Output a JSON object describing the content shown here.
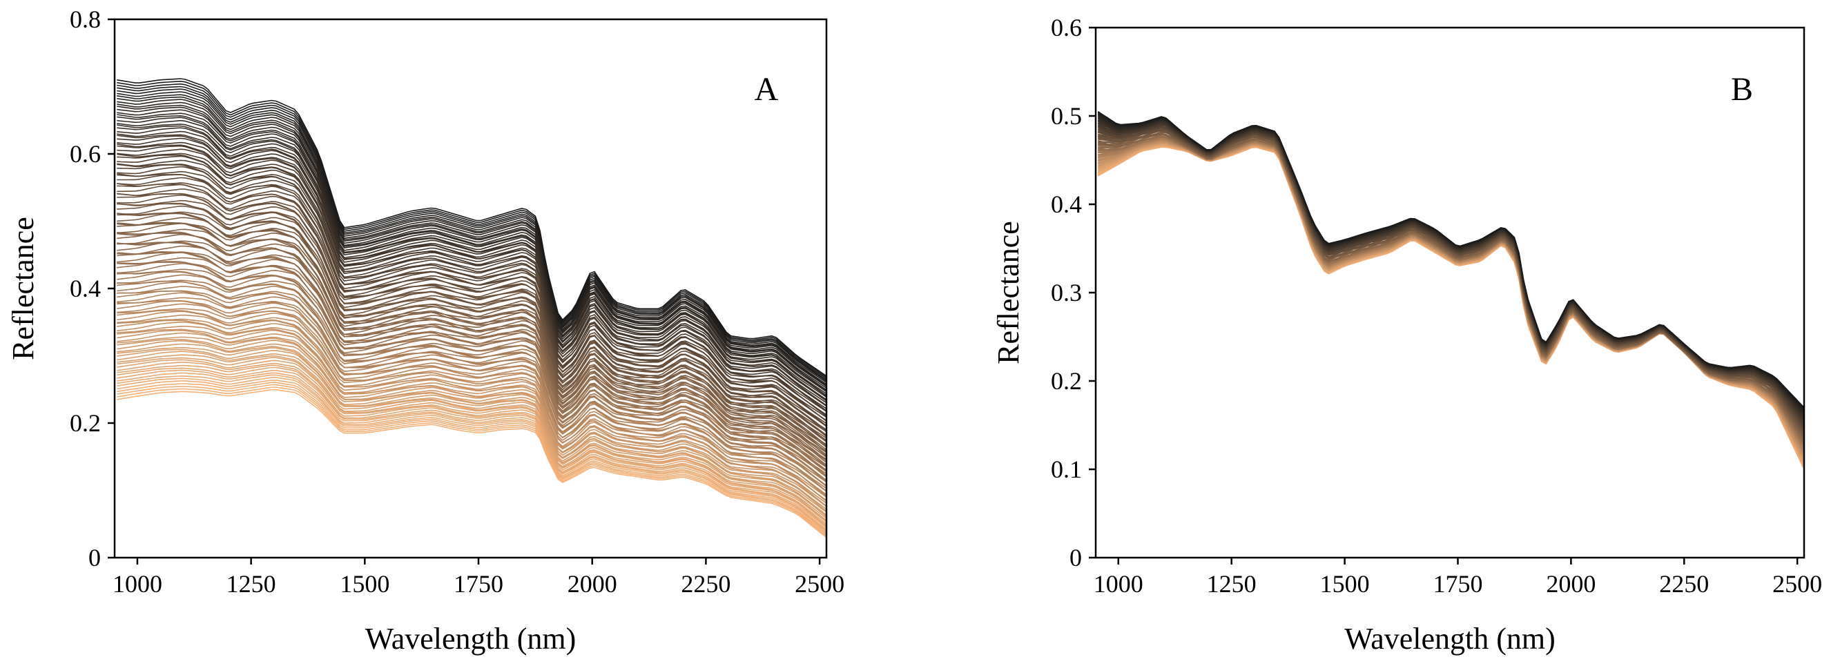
{
  "colors": {
    "dark": "#1a1a1a",
    "light": "#f5b27a"
  },
  "chart_data": [
    {
      "type": "line",
      "panel": "A",
      "xlabel": "Wavelength (nm)",
      "ylabel": "Reflectance",
      "xlim": [
        950,
        2515
      ],
      "ylim": [
        0,
        0.8
      ],
      "xticks": [
        1000,
        1250,
        1500,
        1750,
        2000,
        2250,
        2500
      ],
      "yticks": [
        0,
        0.2,
        0.4,
        0.6,
        0.8
      ],
      "ytick_labels": [
        "0",
        "0.2",
        "0.4",
        "0.6",
        "0.8"
      ],
      "n_spectra": 120,
      "series": [
        {
          "name": "spectrum max",
          "x": [
            955,
            1000,
            1050,
            1100,
            1150,
            1200,
            1250,
            1300,
            1350,
            1400,
            1450,
            1500,
            1550,
            1600,
            1650,
            1700,
            1750,
            1800,
            1850,
            1880,
            1900,
            1930,
            1960,
            2000,
            2050,
            2100,
            2150,
            2200,
            2250,
            2300,
            2350,
            2400,
            2450,
            2515
          ],
          "y": [
            0.71,
            0.705,
            0.71,
            0.712,
            0.7,
            0.66,
            0.675,
            0.68,
            0.665,
            0.6,
            0.49,
            0.495,
            0.505,
            0.515,
            0.52,
            0.51,
            0.5,
            0.51,
            0.52,
            0.505,
            0.43,
            0.35,
            0.37,
            0.43,
            0.38,
            0.37,
            0.37,
            0.4,
            0.38,
            0.33,
            0.325,
            0.33,
            0.3,
            0.27
          ]
        },
        {
          "name": "spectrum min",
          "x": [
            955,
            1000,
            1050,
            1100,
            1150,
            1200,
            1250,
            1300,
            1350,
            1400,
            1450,
            1500,
            1550,
            1600,
            1650,
            1700,
            1750,
            1800,
            1850,
            1880,
            1900,
            1930,
            1960,
            2000,
            2050,
            2100,
            2150,
            2200,
            2250,
            2300,
            2350,
            2400,
            2450,
            2515
          ],
          "y": [
            0.235,
            0.24,
            0.245,
            0.247,
            0.245,
            0.24,
            0.245,
            0.25,
            0.245,
            0.22,
            0.185,
            0.185,
            0.19,
            0.195,
            0.198,
            0.19,
            0.185,
            0.19,
            0.192,
            0.185,
            0.15,
            0.11,
            0.12,
            0.135,
            0.125,
            0.12,
            0.115,
            0.12,
            0.11,
            0.09,
            0.085,
            0.08,
            0.065,
            0.03
          ]
        }
      ]
    },
    {
      "type": "line",
      "panel": "B",
      "xlabel": "Wavelength (nm)",
      "ylabel": "Reflectance",
      "xlim": [
        950,
        2515
      ],
      "ylim": [
        0,
        0.6
      ],
      "xticks": [
        1000,
        1250,
        1500,
        1750,
        2000,
        2250,
        2500
      ],
      "yticks": [
        0,
        0.1,
        0.2,
        0.3,
        0.4,
        0.5,
        0.6
      ],
      "ytick_labels": [
        "0",
        "0.1",
        "0.2",
        "0.3",
        "0.4",
        "0.5",
        "0.6"
      ],
      "n_spectra": 120,
      "series": [
        {
          "name": "spectrum max",
          "x": [
            955,
            1000,
            1050,
            1100,
            1150,
            1200,
            1250,
            1300,
            1350,
            1400,
            1430,
            1460,
            1500,
            1550,
            1600,
            1650,
            1700,
            1750,
            1800,
            1850,
            1880,
            1900,
            1940,
            1970,
            2000,
            2050,
            2100,
            2150,
            2200,
            2250,
            2300,
            2350,
            2400,
            2450,
            2515
          ],
          "y": [
            0.505,
            0.49,
            0.492,
            0.5,
            0.478,
            0.46,
            0.48,
            0.49,
            0.482,
            0.42,
            0.38,
            0.355,
            0.36,
            0.368,
            0.375,
            0.385,
            0.372,
            0.352,
            0.36,
            0.375,
            0.36,
            0.3,
            0.24,
            0.265,
            0.295,
            0.265,
            0.248,
            0.252,
            0.265,
            0.242,
            0.22,
            0.215,
            0.218,
            0.205,
            0.17
          ]
        },
        {
          "name": "spectrum min",
          "x": [
            955,
            1000,
            1050,
            1100,
            1150,
            1200,
            1250,
            1300,
            1350,
            1400,
            1430,
            1460,
            1500,
            1550,
            1600,
            1650,
            1700,
            1750,
            1800,
            1850,
            1880,
            1900,
            1940,
            1970,
            2000,
            2050,
            2100,
            2150,
            2200,
            2250,
            2300,
            2350,
            2400,
            2450,
            2515
          ],
          "y": [
            0.432,
            0.445,
            0.46,
            0.465,
            0.46,
            0.448,
            0.455,
            0.465,
            0.458,
            0.39,
            0.345,
            0.32,
            0.33,
            0.338,
            0.345,
            0.36,
            0.345,
            0.33,
            0.335,
            0.355,
            0.33,
            0.27,
            0.215,
            0.24,
            0.275,
            0.245,
            0.232,
            0.238,
            0.255,
            0.232,
            0.205,
            0.195,
            0.19,
            0.17,
            0.1
          ]
        }
      ]
    }
  ]
}
